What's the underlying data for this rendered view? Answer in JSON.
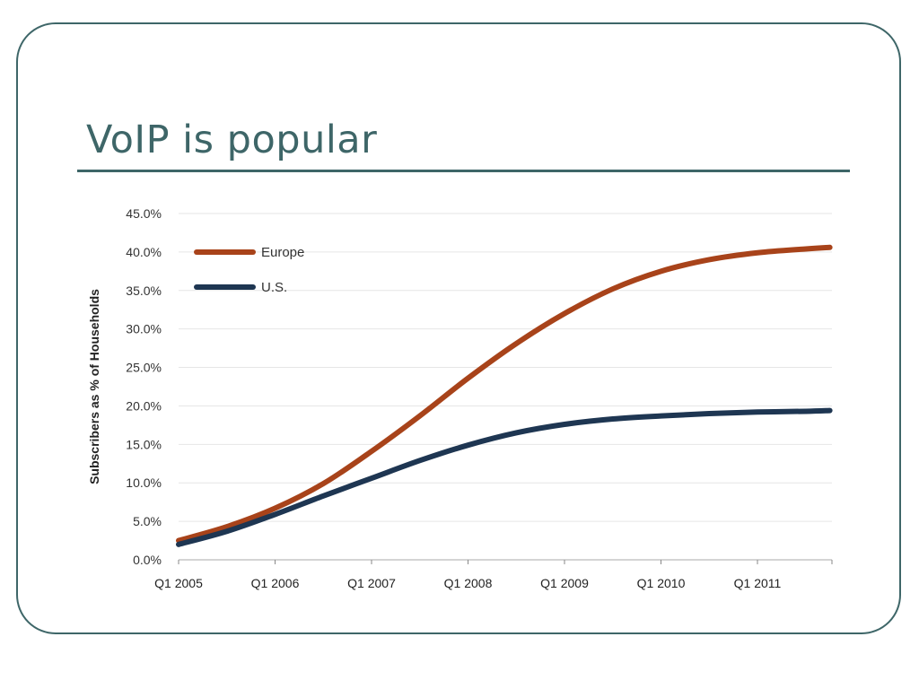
{
  "slide": {
    "title": "VoIP is popular"
  },
  "chart_data": {
    "type": "line",
    "title": "",
    "xlabel": "",
    "ylabel": "Subscribers as % of Households",
    "x_ticks": [
      "Q1 2005",
      "Q1 2006",
      "Q1 2007",
      "Q1 2008",
      "Q1 2009",
      "Q1 2010",
      "Q1 2011"
    ],
    "y_ticks": [
      "0.0%",
      "5.0%",
      "10.0%",
      "15.0%",
      "20.0%",
      "25.0%",
      "30.0%",
      "35.0%",
      "40.0%",
      "45.0%"
    ],
    "ylim": [
      0,
      45
    ],
    "xlim": [
      2005.0,
      2011.75
    ],
    "grid": "horizontal",
    "legend_position": "top-left",
    "x": [
      2005.0,
      2005.5,
      2006.0,
      2006.5,
      2007.0,
      2007.5,
      2008.0,
      2008.5,
      2009.0,
      2009.5,
      2010.0,
      2010.5,
      2011.0,
      2011.5,
      2011.75
    ],
    "series": [
      {
        "name": "Europe",
        "color": "#a8431a",
        "values": [
          2.5,
          4.3,
          6.7,
          9.9,
          14.1,
          18.7,
          23.6,
          28.1,
          32.0,
          35.2,
          37.5,
          39.0,
          39.9,
          40.4,
          40.6
        ]
      },
      {
        "name": "U.S.",
        "color": "#1e3652",
        "values": [
          2.0,
          3.7,
          5.9,
          8.3,
          10.6,
          12.9,
          14.9,
          16.5,
          17.6,
          18.3,
          18.7,
          19.0,
          19.2,
          19.3,
          19.4
        ]
      }
    ]
  }
}
